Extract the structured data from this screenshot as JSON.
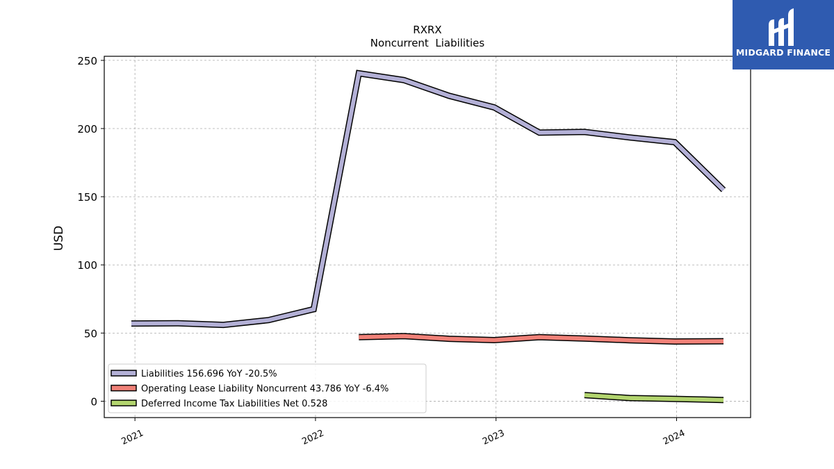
{
  "brand": {
    "name": "MIDGARD FINANCE",
    "color": "#2f5bb0"
  },
  "chart_data": {
    "type": "line",
    "title": "RXRX",
    "subtitle": "Noncurrent  Liabilities",
    "xlabel": "",
    "ylabel": "USD",
    "ylim": [
      -12,
      253
    ],
    "xlim": [
      2020.83,
      2024.41
    ],
    "yticks": [
      0,
      50,
      100,
      150,
      200,
      250
    ],
    "xticks": [
      {
        "value": 2021,
        "label": "2021"
      },
      {
        "value": 2022,
        "label": "2022"
      },
      {
        "value": 2023,
        "label": "2023"
      },
      {
        "value": 2024,
        "label": "2024"
      }
    ],
    "grid": true,
    "legend_position": "lower-left",
    "series": [
      {
        "name": "Liabilities",
        "legend_label": "Liabilities  156.696 YoY -20.5%",
        "color": "#b3b0d6",
        "points": [
          [
            2020.98,
            57
          ],
          [
            2021.24,
            57.2
          ],
          [
            2021.49,
            56
          ],
          [
            2021.74,
            59.5
          ],
          [
            2021.99,
            67.5
          ],
          [
            2022.24,
            240.5
          ],
          [
            2022.49,
            235.5
          ],
          [
            2022.74,
            224
          ],
          [
            2022.99,
            215.5
          ],
          [
            2023.24,
            197
          ],
          [
            2023.49,
            197.5
          ],
          [
            2023.74,
            193.5
          ],
          [
            2023.99,
            190
          ],
          [
            2024.26,
            155
          ]
        ]
      },
      {
        "name": "Operating Lease Liability Noncurrent",
        "legend_label": "Operating Lease Liability Noncurrent  43.786 YoY -6.4%",
        "color": "#f08178",
        "points": [
          [
            2022.24,
            47
          ],
          [
            2022.49,
            47.8
          ],
          [
            2022.74,
            45.8
          ],
          [
            2022.99,
            44.8
          ],
          [
            2023.24,
            47
          ],
          [
            2023.49,
            46
          ],
          [
            2023.74,
            44.7
          ],
          [
            2023.99,
            43.8
          ],
          [
            2024.26,
            44
          ]
        ]
      },
      {
        "name": "Deferred Income Tax Liabilities Net",
        "legend_label": "Deferred Income Tax Liabilities Net  0.528",
        "color": "#b2d46e",
        "points": [
          [
            2023.49,
            4.5
          ],
          [
            2023.74,
            2.3
          ],
          [
            2023.99,
            1.7
          ],
          [
            2024.26,
            0.9
          ]
        ]
      }
    ]
  }
}
